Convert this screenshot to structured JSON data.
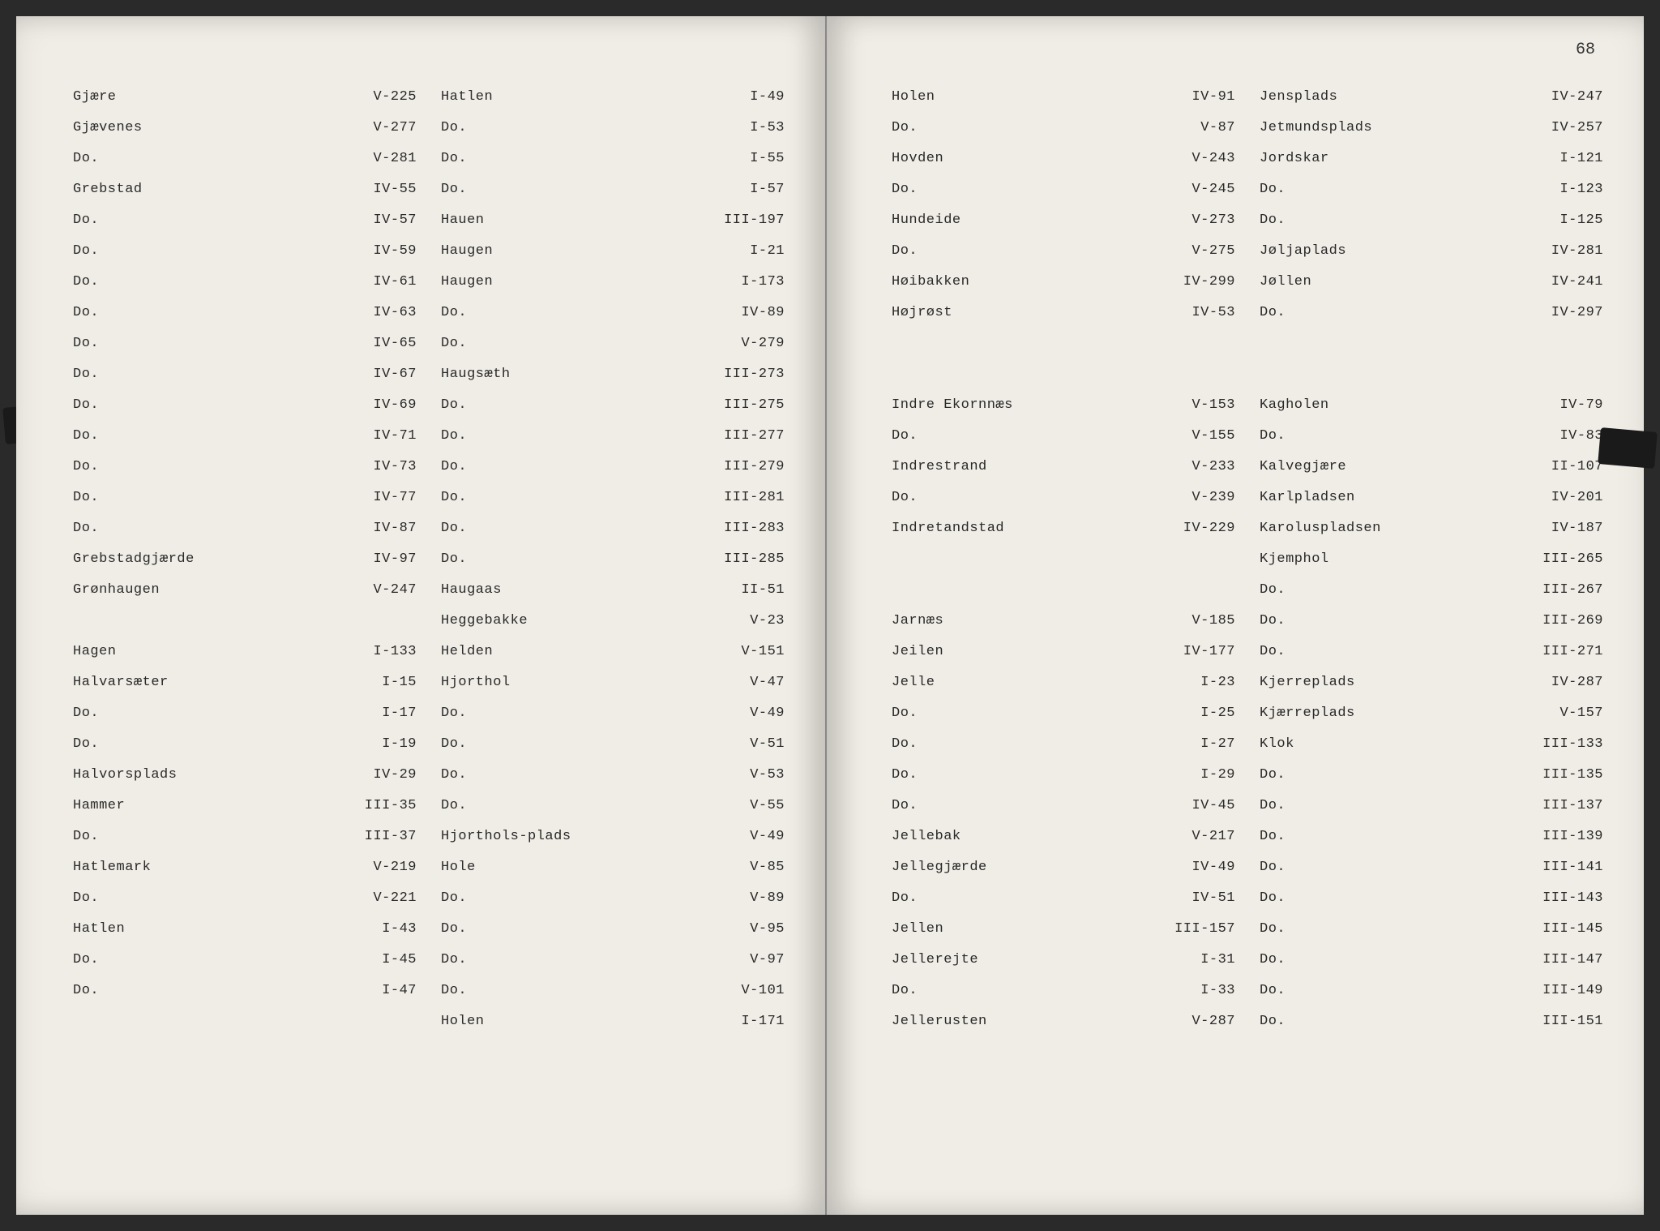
{
  "pageNumber": "68",
  "leftPage": {
    "col1": [
      {
        "place": "Gjære",
        "ref": "V-225"
      },
      {
        "place": "Gjævenes",
        "ref": "V-277"
      },
      {
        "place": "Do.",
        "ref": "V-281"
      },
      {
        "place": "Grebstad",
        "ref": "IV-55"
      },
      {
        "place": "Do.",
        "ref": "IV-57"
      },
      {
        "place": "Do.",
        "ref": "IV-59"
      },
      {
        "place": "Do.",
        "ref": "IV-61"
      },
      {
        "place": "Do.",
        "ref": "IV-63"
      },
      {
        "place": "Do.",
        "ref": "IV-65"
      },
      {
        "place": "Do.",
        "ref": "IV-67"
      },
      {
        "place": "Do.",
        "ref": "IV-69"
      },
      {
        "place": "Do.",
        "ref": "IV-71"
      },
      {
        "place": "Do.",
        "ref": "IV-73"
      },
      {
        "place": "Do.",
        "ref": "IV-77"
      },
      {
        "place": "Do.",
        "ref": "IV-87"
      },
      {
        "place": "Grebstadgjærde",
        "ref": "IV-97"
      },
      {
        "place": "Grønhaugen",
        "ref": "V-247"
      },
      {
        "place": "",
        "ref": ""
      },
      {
        "place": "Hagen",
        "ref": "I-133"
      },
      {
        "place": "Halvarsæter",
        "ref": "I-15"
      },
      {
        "place": "Do.",
        "ref": "I-17"
      },
      {
        "place": "Do.",
        "ref": "I-19"
      },
      {
        "place": "Halvorsplads",
        "ref": "IV-29"
      },
      {
        "place": "Hammer",
        "ref": "III-35"
      },
      {
        "place": "Do.",
        "ref": "III-37"
      },
      {
        "place": "Hatlemark",
        "ref": "V-219"
      },
      {
        "place": "Do.",
        "ref": "V-221"
      },
      {
        "place": "Hatlen",
        "ref": "I-43"
      },
      {
        "place": "Do.",
        "ref": "I-45"
      },
      {
        "place": "Do.",
        "ref": "I-47"
      }
    ],
    "col2": [
      {
        "place": "Hatlen",
        "ref": "I-49"
      },
      {
        "place": "Do.",
        "ref": "I-53"
      },
      {
        "place": "Do.",
        "ref": "I-55"
      },
      {
        "place": "Do.",
        "ref": "I-57"
      },
      {
        "place": "Hauen",
        "ref": "III-197"
      },
      {
        "place": "Haugen",
        "ref": "I-21"
      },
      {
        "place": "Haugen",
        "ref": "I-173"
      },
      {
        "place": "Do.",
        "ref": "IV-89"
      },
      {
        "place": "Do.",
        "ref": "V-279"
      },
      {
        "place": "Haugsæth",
        "ref": "III-273"
      },
      {
        "place": "Do.",
        "ref": "III-275"
      },
      {
        "place": "Do.",
        "ref": "III-277"
      },
      {
        "place": "Do.",
        "ref": "III-279"
      },
      {
        "place": "Do.",
        "ref": "III-281"
      },
      {
        "place": "Do.",
        "ref": "III-283"
      },
      {
        "place": "Do.",
        "ref": "III-285"
      },
      {
        "place": "Haugaas",
        "ref": "II-51"
      },
      {
        "place": "Heggebakke",
        "ref": "V-23"
      },
      {
        "place": "Helden",
        "ref": "V-151"
      },
      {
        "place": "Hjorthol",
        "ref": "V-47"
      },
      {
        "place": "Do.",
        "ref": "V-49"
      },
      {
        "place": "Do.",
        "ref": "V-51"
      },
      {
        "place": "Do.",
        "ref": "V-53"
      },
      {
        "place": "Do.",
        "ref": "V-55"
      },
      {
        "place": "Hjorthols-plads",
        "ref": "V-49"
      },
      {
        "place": "Hole",
        "ref": "V-85"
      },
      {
        "place": "Do.",
        "ref": "V-89"
      },
      {
        "place": "Do.",
        "ref": "V-95"
      },
      {
        "place": "Do.",
        "ref": "V-97"
      },
      {
        "place": "Do.",
        "ref": "V-101"
      },
      {
        "place": "Holen",
        "ref": "I-171"
      }
    ]
  },
  "rightPage": {
    "col1": [
      {
        "place": "Holen",
        "ref": "IV-91"
      },
      {
        "place": "Do.",
        "ref": "V-87"
      },
      {
        "place": "Hovden",
        "ref": "V-243"
      },
      {
        "place": "Do.",
        "ref": "V-245"
      },
      {
        "place": "Hundeide",
        "ref": "V-273"
      },
      {
        "place": "Do.",
        "ref": "V-275"
      },
      {
        "place": "Høibakken",
        "ref": "IV-299"
      },
      {
        "place": "Højrøst",
        "ref": "IV-53"
      },
      {
        "place": "",
        "ref": ""
      },
      {
        "place": "",
        "ref": ""
      },
      {
        "place": "Indre Ekornnæs",
        "ref": "V-153"
      },
      {
        "place": "Do.",
        "ref": "V-155"
      },
      {
        "place": "Indrestrand",
        "ref": "V-233"
      },
      {
        "place": "Do.",
        "ref": "V-239"
      },
      {
        "place": "Indretandstad",
        "ref": "IV-229"
      },
      {
        "place": "",
        "ref": ""
      },
      {
        "place": "",
        "ref": ""
      },
      {
        "place": "Jarnæs",
        "ref": "V-185"
      },
      {
        "place": "Jeilen",
        "ref": "IV-177"
      },
      {
        "place": "Jelle",
        "ref": "I-23"
      },
      {
        "place": "Do.",
        "ref": "I-25"
      },
      {
        "place": "Do.",
        "ref": "I-27"
      },
      {
        "place": "Do.",
        "ref": "I-29"
      },
      {
        "place": "Do.",
        "ref": "IV-45"
      },
      {
        "place": "Jellebak",
        "ref": "V-217"
      },
      {
        "place": "Jellegjærde",
        "ref": "IV-49"
      },
      {
        "place": "Do.",
        "ref": "IV-51"
      },
      {
        "place": "Jellen",
        "ref": "III-157"
      },
      {
        "place": "Jellerejte",
        "ref": "I-31"
      },
      {
        "place": "Do.",
        "ref": "I-33"
      },
      {
        "place": "Jellerusten",
        "ref": "V-287"
      }
    ],
    "col2": [
      {
        "place": "Jensplads",
        "ref": "IV-247"
      },
      {
        "place": "Jetmundsplads",
        "ref": "IV-257"
      },
      {
        "place": "Jordskar",
        "ref": "I-121"
      },
      {
        "place": "Do.",
        "ref": "I-123"
      },
      {
        "place": "Do.",
        "ref": "I-125"
      },
      {
        "place": "Jøljaplads",
        "ref": "IV-281"
      },
      {
        "place": "Jøllen",
        "ref": "IV-241"
      },
      {
        "place": "Do.",
        "ref": "IV-297"
      },
      {
        "place": "",
        "ref": ""
      },
      {
        "place": "",
        "ref": ""
      },
      {
        "place": "Kagholen",
        "ref": "IV-79"
      },
      {
        "place": "Do.",
        "ref": "IV-83"
      },
      {
        "place": "Kalvegjære",
        "ref": "II-107"
      },
      {
        "place": "Karlpladsen",
        "ref": "IV-201"
      },
      {
        "place": "Karoluspladsen",
        "ref": "IV-187"
      },
      {
        "place": "Kjemphol",
        "ref": "III-265"
      },
      {
        "place": "Do.",
        "ref": "III-267"
      },
      {
        "place": "Do.",
        "ref": "III-269"
      },
      {
        "place": "Do.",
        "ref": "III-271"
      },
      {
        "place": "Kjerreplads",
        "ref": "IV-287"
      },
      {
        "place": "Kjærreplads",
        "ref": "V-157"
      },
      {
        "place": "Klok",
        "ref": "III-133"
      },
      {
        "place": "Do.",
        "ref": "III-135"
      },
      {
        "place": "Do.",
        "ref": "III-137"
      },
      {
        "place": "Do.",
        "ref": "III-139"
      },
      {
        "place": "Do.",
        "ref": "III-141"
      },
      {
        "place": "Do.",
        "ref": "III-143"
      },
      {
        "place": "Do.",
        "ref": "III-145"
      },
      {
        "place": "Do.",
        "ref": "III-147"
      },
      {
        "place": "Do.",
        "ref": "III-149"
      },
      {
        "place": "Do.",
        "ref": "III-151"
      }
    ]
  }
}
